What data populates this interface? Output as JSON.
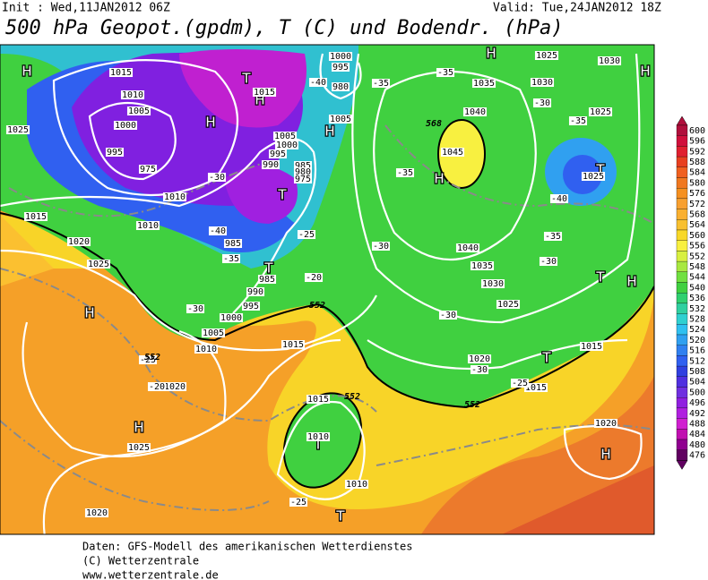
{
  "header": {
    "init": "Init : Wed,11JAN2012 06Z",
    "valid": "Valid: Tue,24JAN2012 18Z",
    "title": "500 hPa Geopot.(gpdm), T (C) und Bodendr. (hPa)"
  },
  "colorbar": {
    "values": [
      600,
      596,
      592,
      588,
      584,
      580,
      576,
      572,
      568,
      564,
      560,
      556,
      552,
      548,
      544,
      540,
      536,
      532,
      528,
      524,
      520,
      516,
      512,
      508,
      504,
      500,
      496,
      492,
      488,
      484,
      480,
      476
    ],
    "colors": [
      "#b0103c",
      "#d0103c",
      "#e02030",
      "#e84020",
      "#f06020",
      "#f07820",
      "#f59020",
      "#f8a030",
      "#fab030",
      "#f8c030",
      "#f8d828",
      "#f8f040",
      "#d8f040",
      "#a8e840",
      "#70e040",
      "#40d040",
      "#30d070",
      "#30d0a0",
      "#30d0d0",
      "#30c0f0",
      "#30a0f0",
      "#3080f0",
      "#3060f0",
      "#3040e0",
      "#5030e0",
      "#7030e0",
      "#9020e0",
      "#b020e0",
      "#d020d0",
      "#c010b0",
      "#900090",
      "#600060"
    ]
  },
  "map": {
    "pressure_centers": [
      "H",
      "H",
      "T",
      "H",
      "T",
      "T",
      "H",
      "H",
      "T",
      "T",
      "H",
      "H",
      "T",
      "T",
      "H",
      "H",
      "T",
      "H",
      "H"
    ],
    "isobars": [
      1025,
      1015,
      1010,
      1020,
      1025,
      1015,
      1010,
      1005,
      1000,
      995,
      975,
      1010,
      1005,
      1000,
      995,
      990,
      985,
      980,
      975,
      985,
      985,
      990,
      995,
      1000,
      1005,
      1010,
      1015,
      1000,
      995,
      980,
      1005,
      1015,
      1040,
      1045,
      1035,
      1040,
      1035,
      1030,
      1025,
      1025,
      1030,
      1030,
      1025,
      1025,
      1020,
      1015,
      1015,
      1020,
      1025,
      1020,
      1015,
      1010,
      1010,
      1020
    ],
    "temperatures": [
      -35,
      -40,
      -35,
      -30,
      -35,
      -35,
      -40,
      -35,
      -25,
      -20,
      -30,
      -30,
      -30,
      -35,
      -30,
      -25,
      -20,
      -30,
      -25,
      -25,
      -40,
      -30
    ],
    "geopotential": [
      552,
      552,
      552,
      552,
      568
    ]
  },
  "footer": {
    "lines": [
      "Daten: GFS-Modell des amerikanischen Wetterdienstes",
      "(C) Wetterzentrale",
      "www.wetterzentrale.de"
    ]
  }
}
